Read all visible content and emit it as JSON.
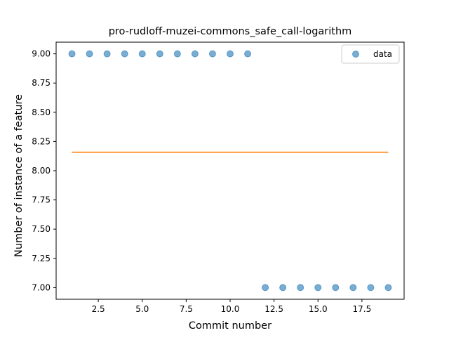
{
  "chart_data": {
    "type": "scatter",
    "title": "pro-rudloff-muzei-commons_safe_call-logarithm",
    "xlabel": "Commit number",
    "ylabel": "Number of instance of a feature",
    "xlim": [
      0.1,
      19.9
    ],
    "ylim": [
      6.9,
      9.1
    ],
    "xticks": [
      2.5,
      5.0,
      7.5,
      10.0,
      12.5,
      15.0,
      17.5
    ],
    "xtick_labels": [
      "2.5",
      "5.0",
      "7.5",
      "10.0",
      "12.5",
      "15.0",
      "17.5"
    ],
    "yticks": [
      7.0,
      7.25,
      7.5,
      7.75,
      8.0,
      8.25,
      8.5,
      8.75,
      9.0
    ],
    "ytick_labels": [
      "7.00",
      "7.25",
      "7.50",
      "7.75",
      "8.00",
      "8.25",
      "8.50",
      "8.75",
      "9.00"
    ],
    "grid": false,
    "legend_position": "upper right",
    "series": [
      {
        "name": "data",
        "kind": "scatter",
        "color": "#1f77b4",
        "x": [
          1,
          2,
          3,
          4,
          5,
          6,
          7,
          8,
          9,
          10,
          11,
          12,
          13,
          14,
          15,
          16,
          17,
          18,
          19
        ],
        "y": [
          9,
          9,
          9,
          9,
          9,
          9,
          9,
          9,
          9,
          9,
          9,
          7,
          7,
          7,
          7,
          7,
          7,
          7,
          7
        ]
      },
      {
        "kind": "line",
        "color": "#ff7f0e",
        "x": [
          1,
          19
        ],
        "y": [
          8.158,
          8.158
        ]
      }
    ]
  }
}
